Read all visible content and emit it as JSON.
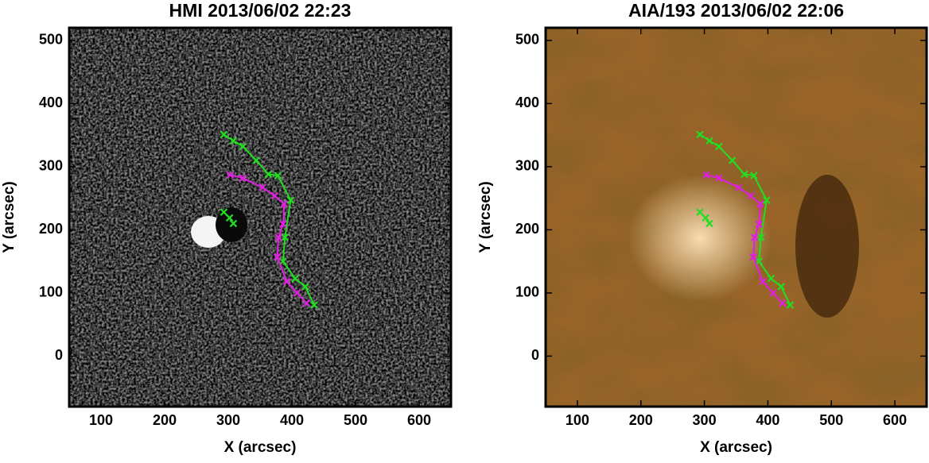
{
  "chart_data": [
    {
      "type": "line",
      "title": "HMI 2013/06/02 22:23",
      "x_label": "X (arcsec)",
      "y_label": "Y (arcsec)",
      "xlim": [
        50,
        650
      ],
      "ylim": [
        -80,
        520
      ],
      "xticks": [
        100,
        200,
        300,
        400,
        500,
        600
      ],
      "yticks": [
        0,
        100,
        200,
        300,
        400,
        500
      ],
      "background": "magnetogram",
      "series": [
        {
          "color": "#22dd22",
          "x": [
            293,
            308,
            323,
            344,
            363,
            378,
            398,
            389,
            386,
            405,
            421,
            435,
            null,
            293,
            302,
            308
          ],
          "values": [
            351,
            341,
            332,
            310,
            288,
            286,
            247,
            188,
            150,
            123,
            110,
            81,
            null,
            228,
            219,
            210
          ]
        },
        {
          "color": "#e020e0",
          "x": [
            303,
            323,
            354,
            373,
            388,
            386,
            379,
            377,
            392,
            408,
            423
          ],
          "values": [
            287,
            282,
            267,
            254,
            241,
            209,
            188,
            157,
            118,
            100,
            84
          ]
        }
      ]
    },
    {
      "type": "line",
      "title": "AIA/193 2013/06/02 22:06",
      "x_label": "X (arcsec)",
      "y_label": "Y (arcsec)",
      "xlim": [
        50,
        650
      ],
      "ylim": [
        -80,
        520
      ],
      "xticks": [
        100,
        200,
        300,
        400,
        500,
        600
      ],
      "yticks": [
        0,
        100,
        200,
        300,
        400,
        500
      ],
      "background": "euv",
      "series": [
        {
          "color": "#22dd22",
          "x": [
            293,
            308,
            323,
            344,
            363,
            378,
            398,
            389,
            386,
            405,
            421,
            435,
            null,
            293,
            302,
            308
          ],
          "values": [
            351,
            341,
            332,
            310,
            288,
            286,
            247,
            188,
            150,
            123,
            110,
            81,
            null,
            228,
            219,
            210
          ]
        },
        {
          "color": "#e020e0",
          "x": [
            303,
            323,
            354,
            373,
            388,
            386,
            379,
            377,
            392,
            408,
            423
          ],
          "values": [
            287,
            282,
            267,
            254,
            241,
            209,
            188,
            157,
            118,
            100,
            84
          ]
        }
      ]
    }
  ]
}
